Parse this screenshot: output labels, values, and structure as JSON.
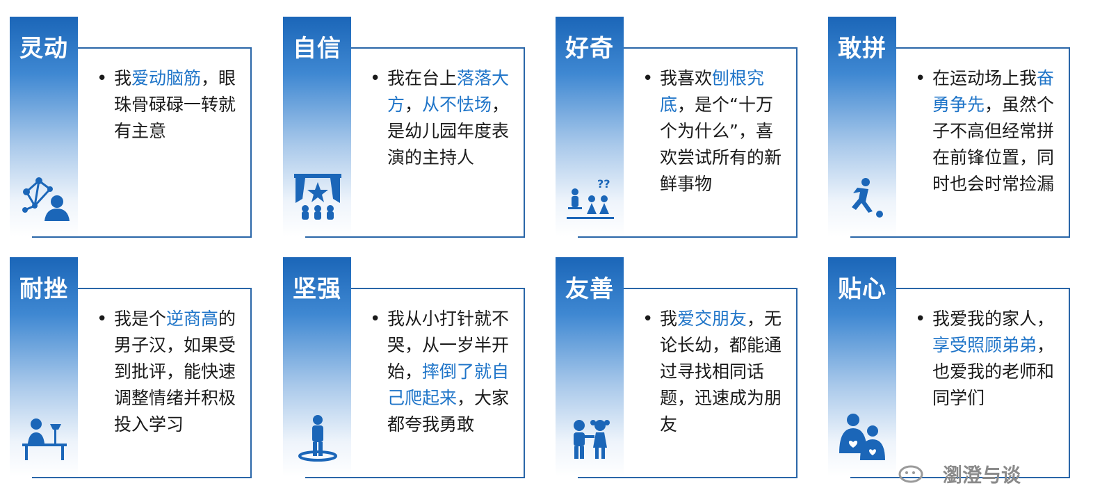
{
  "cards": [
    {
      "title": "灵动",
      "bullet": "•",
      "segments": [
        {
          "t": "我",
          "h": false
        },
        {
          "t": "爱动脑筋",
          "h": true
        },
        {
          "t": "，眼珠骨碌碌一转就有主意",
          "h": false
        }
      ],
      "icon": "network-person-icon"
    },
    {
      "title": "自信",
      "bullet": "•",
      "segments": [
        {
          "t": "我在台上",
          "h": false
        },
        {
          "t": "落落大方",
          "h": true
        },
        {
          "t": "，",
          "h": false
        },
        {
          "t": "从不怯场",
          "h": true
        },
        {
          "t": "，是幼儿园年度表演的主持人",
          "h": false
        }
      ],
      "icon": "stage-star-icon"
    },
    {
      "title": "好奇",
      "bullet": "•",
      "segments": [
        {
          "t": "我喜欢",
          "h": false
        },
        {
          "t": "刨根究底",
          "h": true
        },
        {
          "t": "，是个“十万个为什么”，喜欢尝试所有的新鲜事物",
          "h": false
        }
      ],
      "icon": "teacher-children-question-icon"
    },
    {
      "title": "敢拼",
      "bullet": "•",
      "segments": [
        {
          "t": "在运动场上我",
          "h": false
        },
        {
          "t": "奋勇争先",
          "h": true
        },
        {
          "t": "，虽然个子不高但经常拼在前锋位置，同时也会时常捡漏",
          "h": false
        }
      ],
      "icon": "soccer-player-icon"
    },
    {
      "title": "耐挫",
      "bullet": "•",
      "segments": [
        {
          "t": "我是个",
          "h": false
        },
        {
          "t": "逆商高",
          "h": true
        },
        {
          "t": "的男子汉，如果受到批评，能快速调整情绪并积极投入学习",
          "h": false
        }
      ],
      "icon": "study-desk-icon"
    },
    {
      "title": "坚强",
      "bullet": "•",
      "segments": [
        {
          "t": "我从小打针就不哭，从一岁半开始，",
          "h": false
        },
        {
          "t": "摔倒了就自己爬起来",
          "h": true
        },
        {
          "t": "，大家都夸我勇敢",
          "h": false
        }
      ],
      "icon": "standing-person-icon"
    },
    {
      "title": "友善",
      "bullet": "•",
      "segments": [
        {
          "t": "我",
          "h": false
        },
        {
          "t": "爱交朋友",
          "h": true
        },
        {
          "t": "，无论长幼，都能通过寻找相同话题，迅速成为朋友",
          "h": false
        }
      ],
      "icon": "two-kids-icon"
    },
    {
      "title": "贴心",
      "bullet": "•",
      "segments": [
        {
          "t": "我爱我的家人，",
          "h": false
        },
        {
          "t": "享受照顾弟弟",
          "h": true
        },
        {
          "t": "，也爱我的老师和同学们",
          "h": false
        }
      ],
      "icon": "family-hearts-icon"
    }
  ],
  "colors": {
    "accent": "#1e74c8",
    "frame": "#2a66a8",
    "pillar_top": "#1b66b8"
  },
  "watermark": {
    "text": "瀏澄与谈",
    "icon": "wechat-icon"
  }
}
